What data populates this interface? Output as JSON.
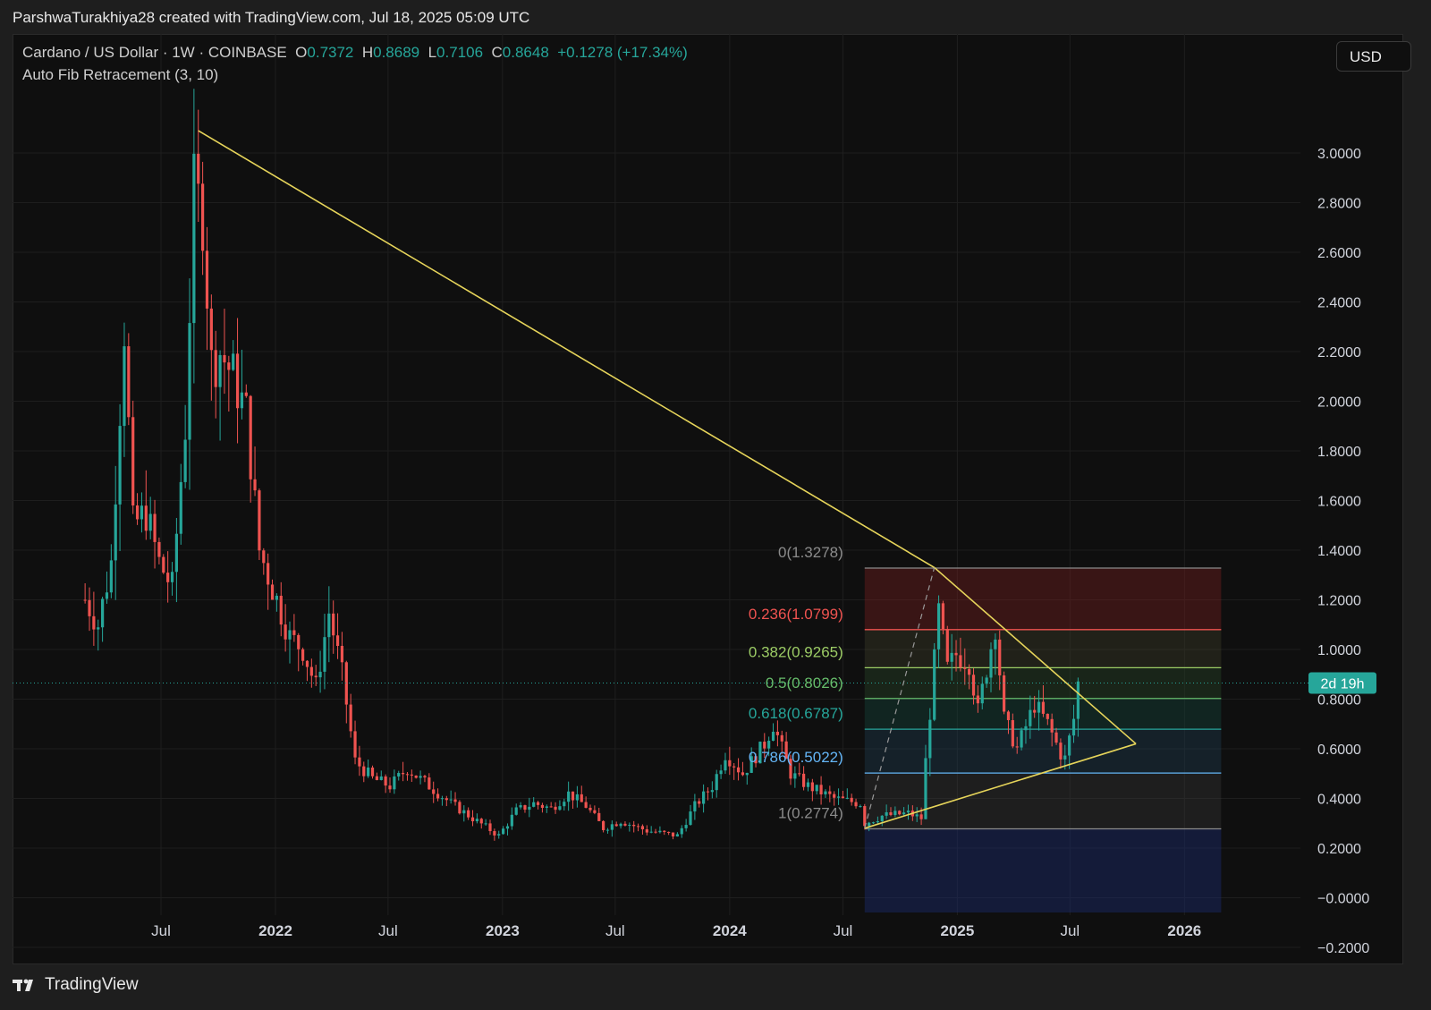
{
  "header": {
    "attribution": "ParshwaTurakhiya28 created with TradingView.com, Jul 18, 2025 05:09 UTC"
  },
  "legend": {
    "symbol": "Cardano / US Dollar · 1W · COINBASE",
    "o_label": "O",
    "o_value": "0.7372",
    "h_label": "H",
    "h_value": "0.8689",
    "l_label": "L",
    "l_value": "0.7106",
    "c_label": "C",
    "c_value": "0.8648",
    "change": "+0.1278 (+17.34%)"
  },
  "indicator": {
    "label": "Auto Fib Retracement (3, 10)"
  },
  "currency_button": {
    "label": "USD"
  },
  "footer": {
    "brand": "TradingView"
  },
  "colors": {
    "up": "#26a69a",
    "down": "#ef5350",
    "trendline": "#e6d45a",
    "background": "#0f0f0f",
    "price_tag": "#26a69a"
  },
  "chart_data": {
    "type": "candlestick",
    "symbol": "ADA/USD",
    "timeframe": "1W",
    "ylim": [
      -0.25,
      3.12
    ],
    "y_ticks": [
      "3.0000",
      "2.8000",
      "2.6000",
      "2.4000",
      "2.2000",
      "2.0000",
      "1.8000",
      "1.6000",
      "1.4000",
      "1.2000",
      "1.0000",
      "0.8000",
      "0.6000",
      "0.4000",
      "0.2000",
      "−0.0000",
      "−0.2000"
    ],
    "x_ticks": [
      {
        "label": "Jul",
        "date": "2021-07-01",
        "bold": false
      },
      {
        "label": "2022",
        "date": "2022-01-01",
        "bold": true
      },
      {
        "label": "Jul",
        "date": "2022-07-01",
        "bold": false
      },
      {
        "label": "2023",
        "date": "2023-01-01",
        "bold": true
      },
      {
        "label": "Jul",
        "date": "2023-07-01",
        "bold": false
      },
      {
        "label": "2024",
        "date": "2024-01-01",
        "bold": true
      },
      {
        "label": "Jul",
        "date": "2024-07-01",
        "bold": false
      },
      {
        "label": "2025",
        "date": "2025-01-01",
        "bold": true
      },
      {
        "label": "Jul",
        "date": "2025-07-01",
        "bold": false
      },
      {
        "label": "2026",
        "date": "2026-01-01",
        "bold": true
      }
    ],
    "price_path": [
      [
        "2021-03-01",
        1.2
      ],
      [
        "2021-03-22",
        1.1
      ],
      [
        "2021-04-12",
        1.35
      ],
      [
        "2021-05-03",
        2.3
      ],
      [
        "2021-05-17",
        1.5
      ],
      [
        "2021-06-07",
        1.55
      ],
      [
        "2021-06-28",
        1.35
      ],
      [
        "2021-07-19",
        1.25
      ],
      [
        "2021-08-09",
        1.9
      ],
      [
        "2021-08-23",
        2.85
      ],
      [
        "2021-09-06",
        2.75
      ],
      [
        "2021-09-20",
        2.15
      ],
      [
        "2021-10-04",
        2.2
      ],
      [
        "2021-10-25",
        2.1
      ],
      [
        "2021-11-15",
        1.95
      ],
      [
        "2021-12-06",
        1.4
      ],
      [
        "2022-01-03",
        1.2
      ],
      [
        "2022-01-24",
        1.05
      ],
      [
        "2022-02-14",
        1.0
      ],
      [
        "2022-03-07",
        0.85
      ],
      [
        "2022-03-28",
        1.15
      ],
      [
        "2022-04-18",
        0.9
      ],
      [
        "2022-05-09",
        0.55
      ],
      [
        "2022-06-06",
        0.48
      ],
      [
        "2022-07-04",
        0.45
      ],
      [
        "2022-08-01",
        0.52
      ],
      [
        "2022-09-05",
        0.45
      ],
      [
        "2022-10-10",
        0.38
      ],
      [
        "2022-11-14",
        0.32
      ],
      [
        "2022-12-26",
        0.25
      ],
      [
        "2023-01-23",
        0.35
      ],
      [
        "2023-02-20",
        0.38
      ],
      [
        "2023-03-20",
        0.36
      ],
      [
        "2023-04-17",
        0.42
      ],
      [
        "2023-05-15",
        0.37
      ],
      [
        "2023-06-12",
        0.28
      ],
      [
        "2023-07-10",
        0.31
      ],
      [
        "2023-08-21",
        0.27
      ],
      [
        "2023-10-09",
        0.25
      ],
      [
        "2023-11-06",
        0.37
      ],
      [
        "2023-12-04",
        0.45
      ],
      [
        "2023-12-25",
        0.58
      ],
      [
        "2024-01-22",
        0.5
      ],
      [
        "2024-02-26",
        0.62
      ],
      [
        "2024-03-11",
        0.7
      ],
      [
        "2024-04-08",
        0.5
      ],
      [
        "2024-05-06",
        0.45
      ],
      [
        "2024-06-17",
        0.4
      ],
      [
        "2024-07-29",
        0.38
      ],
      [
        "2024-08-05",
        0.3
      ],
      [
        "2024-09-02",
        0.33
      ],
      [
        "2024-10-14",
        0.34
      ],
      [
        "2024-11-04",
        0.32
      ],
      [
        "2024-11-11",
        0.55
      ],
      [
        "2024-11-25",
        0.95
      ],
      [
        "2024-12-02",
        1.15
      ],
      [
        "2024-12-16",
        0.92
      ],
      [
        "2024-12-30",
        0.98
      ],
      [
        "2025-01-20",
        0.95
      ],
      [
        "2025-02-03",
        0.75
      ],
      [
        "2025-03-03",
        1.1
      ],
      [
        "2025-03-17",
        0.72
      ],
      [
        "2025-04-07",
        0.6
      ],
      [
        "2025-05-05",
        0.78
      ],
      [
        "2025-05-26",
        0.7
      ],
      [
        "2025-06-16",
        0.58
      ],
      [
        "2025-06-23",
        0.56
      ],
      [
        "2025-07-07",
        0.72
      ],
      [
        "2025-07-14",
        0.8648
      ]
    ],
    "current_price_tag": "2d 19h",
    "fib_retracement": {
      "start_date": "2024-08-05",
      "end_date": "2026-03-01",
      "levels": [
        {
          "ratio": "0",
          "price": 1.3278,
          "label": "0(1.3278)",
          "color": "#8b8b8b",
          "zone": "rgba(120,30,30,0.40)"
        },
        {
          "ratio": "0.236",
          "price": 1.0799,
          "label": "0.236(1.0799)",
          "color": "#ef5350",
          "zone": "rgba(60,60,40,0.40)"
        },
        {
          "ratio": "0.382",
          "price": 0.9265,
          "label": "0.382(0.9265)",
          "color": "#9ccc65",
          "zone": "rgba(40,70,40,0.40)"
        },
        {
          "ratio": "0.5",
          "price": 0.8026,
          "label": "0.5(0.8026)",
          "color": "#66bb6a",
          "zone": "rgba(20,70,60,0.40)"
        },
        {
          "ratio": "0.618",
          "price": 0.6787,
          "label": "0.618(0.6787)",
          "color": "#26a69a",
          "zone": "rgba(30,60,80,0.40)"
        },
        {
          "ratio": "0.786",
          "price": 0.5022,
          "label": "0.786(0.5022)",
          "color": "#64b5f6",
          "zone": "rgba(60,60,60,0.35)"
        },
        {
          "ratio": "1",
          "price": 0.2774,
          "label": "1(0.2774)",
          "color": "#8b8b8b",
          "zone": "rgba(26,40,100,0.50)"
        }
      ]
    },
    "trendlines": [
      {
        "name": "descending",
        "points": [
          [
            "2021-08-30",
            3.09
          ],
          [
            "2024-11-25",
            1.33
          ],
          [
            "2025-10-15",
            0.62
          ]
        ]
      },
      {
        "name": "ascending",
        "points": [
          [
            "2024-08-05",
            0.28
          ],
          [
            "2025-10-15",
            0.62
          ]
        ]
      },
      {
        "name": "fib-swing",
        "dashed": true,
        "points": [
          [
            "2024-08-05",
            0.28
          ],
          [
            "2024-11-25",
            1.33
          ]
        ]
      }
    ]
  }
}
